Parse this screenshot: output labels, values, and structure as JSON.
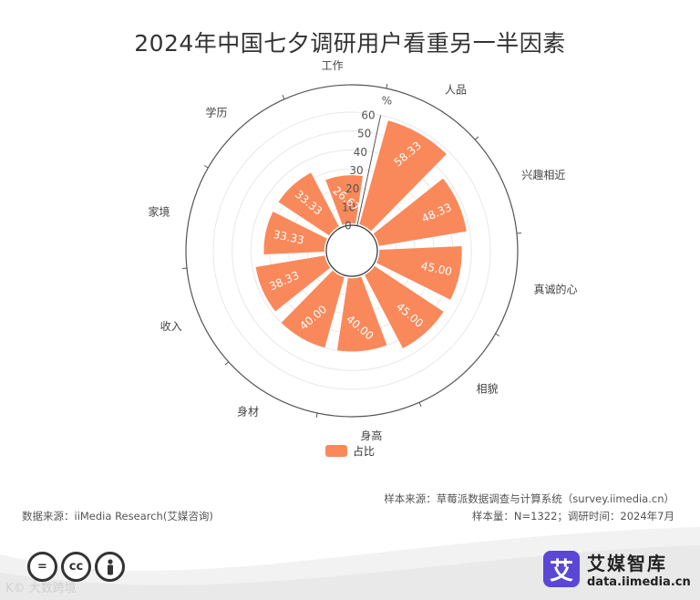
{
  "title": "2024年中国七夕调研用户看重另一半因素",
  "chart_data": {
    "type": "polar-bar",
    "categories": [
      "人品",
      "兴趣相近",
      "真诚的心",
      "相貌",
      "身高",
      "身材",
      "收入",
      "家境",
      "学历",
      "工作"
    ],
    "series": [
      {
        "name": "占比",
        "values": [
          58.33,
          48.33,
          45.0,
          45.0,
          40.0,
          40.0,
          38.33,
          33.33,
          33.33,
          26.67
        ],
        "value_labels": [
          "58.33",
          "48.33",
          "45.00",
          "45.00",
          "40.00",
          "40.00",
          "38.33",
          "33.33",
          "33.33",
          "26.67"
        ]
      }
    ],
    "radial_axis": {
      "min": 0,
      "max": 60,
      "ticks": [
        "0",
        "10",
        "20",
        "30",
        "40",
        "50",
        "60"
      ],
      "unit": "%"
    },
    "bar_color": "#f9895b",
    "legend_position": "bottom-center",
    "grid": true
  },
  "legend": {
    "label": "占比",
    "color": "#f9895b"
  },
  "source": {
    "sample_source": "样本来源：草莓派数据调查与计算系统（survey.iimedia.cn）",
    "data_source": "数据来源：iiMedia Research(艾媒咨询)",
    "sample_info": "样本量：N=1322；调研时间：2024年7月"
  },
  "footer": {
    "cc_icons": [
      "=",
      "cc",
      "person-icon"
    ],
    "watermark": "K© 大数跨境",
    "brand_logo_char": "艾",
    "brand_name": "艾媒智库",
    "brand_url": "data.iimedia.cn"
  }
}
